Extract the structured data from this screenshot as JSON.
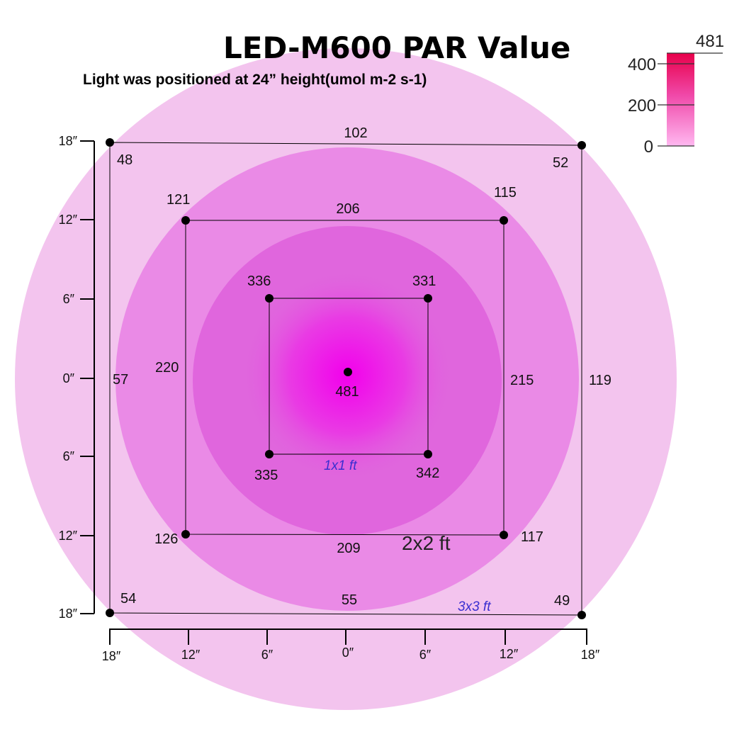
{
  "title": "LED-M600 PAR Value",
  "subtitle": "Light was positioned at 24”  height(umol m-2 s-1)",
  "legend": {
    "max_label": "481",
    "ticks": [
      "400",
      "200",
      "0"
    ],
    "color_top": "#e8004a",
    "color_bottom": "#ffb8f0"
  },
  "colors": {
    "outer_ring": "#f3c4ee",
    "middle_ring": "#ea8ae6",
    "inner_ring": "#e066dd",
    "center_glow": "#f000e8"
  },
  "y_axis_ticks": [
    "18″",
    "12″",
    "6″",
    "0″",
    "6″",
    "12″",
    "18″"
  ],
  "x_axis_ticks": [
    "18″",
    "12″",
    "6″",
    "0″",
    "6″",
    "12″",
    "18″"
  ],
  "squares": {
    "outer": {
      "label": "3x3 ft",
      "corners": [
        "48",
        "52",
        "54",
        "49"
      ],
      "edges": {
        "top": "102",
        "bottom": "55",
        "left": "57",
        "right": "119"
      }
    },
    "middle": {
      "label": "2x2 ft",
      "corners": [
        "121",
        "115",
        "126",
        "117"
      ],
      "edges": {
        "top": "206",
        "bottom": "209",
        "left": "220",
        "right": "215"
      }
    },
    "inner": {
      "label": "1x1 ft",
      "corners": [
        "336",
        "331",
        "335",
        "342"
      ]
    }
  },
  "center_value": "481"
}
